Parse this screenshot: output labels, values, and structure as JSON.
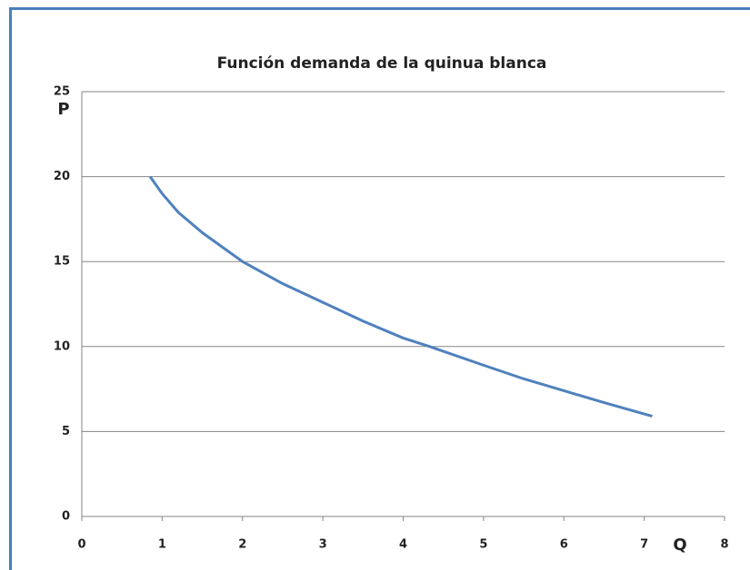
{
  "chart_data": {
    "type": "line",
    "title": "Función demanda de la quinua blanca",
    "x_label": "Q",
    "y_label": "P",
    "x": [
      0.85,
      1,
      1.2,
      1.5,
      2,
      2.5,
      3,
      3.5,
      4,
      4.33,
      5,
      5.5,
      6,
      6.5,
      7.1
    ],
    "values": [
      20,
      19,
      17.9,
      16.7,
      15,
      13.7,
      12.6,
      11.5,
      10.5,
      10,
      8.9,
      8.1,
      7.4,
      6.7,
      5.9
    ],
    "color": "#4f81bd",
    "xlim": [
      0,
      8
    ],
    "xticks": [
      0,
      1,
      2,
      3,
      4,
      5,
      6,
      7,
      8
    ],
    "ylim": [
      0,
      25
    ],
    "yticks": [
      0,
      5,
      10,
      15,
      20,
      25
    ],
    "grid": true
  }
}
